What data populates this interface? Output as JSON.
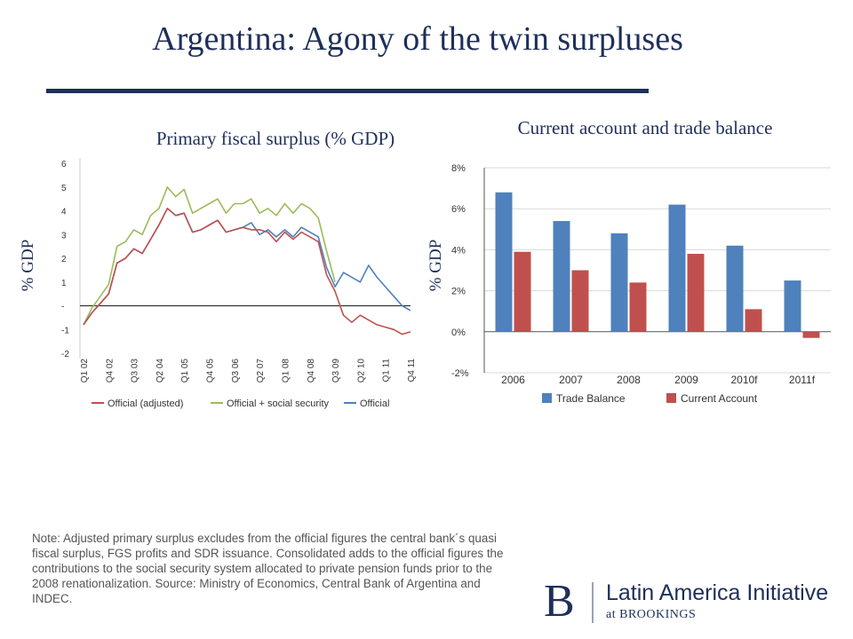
{
  "slide": {
    "title": "Argentina: Agony of the twin surpluses",
    "note": "Note: Adjusted primary surplus excludes from the official figures the central bank´s quasi fiscal surplus, FGS profits and SDR issuance. Consolidated adds to the official figures the contributions to the social security system allocated to private pension funds prior to the 2008 renationalization. Source: Ministry of Economics, Central Bank of Argentina and INDEC.",
    "logo": {
      "mark": "B",
      "name": "Latin America Initiative",
      "sub": "at BROOKINGS"
    }
  },
  "colors": {
    "title": "#1f2f5a",
    "green": "#9bbb59",
    "blue": "#4f81bd",
    "red": "#c0504d"
  },
  "chart_data": [
    {
      "type": "line",
      "title": "Primary fiscal surplus (% GDP)",
      "ylabel": "% GDP",
      "ylim": [
        -2,
        6
      ],
      "y_ticks": [
        "6",
        "5",
        "4",
        "3",
        "2",
        "1",
        "-",
        "-1",
        "-2"
      ],
      "x_tick_labels": [
        "Q1 02",
        "Q4 02",
        "Q3 03",
        "Q2 04",
        "Q1 05",
        "Q4 05",
        "Q3 06",
        "Q2 07",
        "Q1 08",
        "Q4 08",
        "Q3 09",
        "Q2 10",
        "Q1 11",
        "Q4 11"
      ],
      "x_tick_index": [
        0,
        3,
        6,
        9,
        12,
        15,
        18,
        21,
        24,
        27,
        30,
        33,
        36,
        39
      ],
      "legend": "bottom",
      "series": [
        {
          "name": "Official (adjusted)",
          "color": "#c0504d",
          "values": [
            -0.8,
            -0.3,
            0.1,
            0.5,
            1.8,
            2.0,
            2.4,
            2.2,
            2.8,
            3.4,
            4.1,
            3.8,
            3.9,
            3.1,
            3.2,
            3.4,
            3.6,
            3.1,
            3.2,
            3.3,
            3.2,
            3.2,
            3.1,
            2.7,
            3.1,
            2.8,
            3.1,
            2.9,
            2.7,
            1.3,
            0.6,
            -0.4,
            -0.7,
            -0.4,
            -0.6,
            -0.8,
            -0.9,
            -1.0,
            -1.2,
            -1.1
          ]
        },
        {
          "name": "Official + social security",
          "color": "#9bbb59",
          "values": [
            -0.8,
            -0.1,
            0.4,
            0.9,
            2.5,
            2.7,
            3.2,
            3.0,
            3.8,
            4.1,
            5.0,
            4.6,
            4.9,
            3.9,
            4.1,
            4.3,
            4.5,
            3.9,
            4.3,
            4.3,
            4.5,
            3.9,
            4.1,
            3.8,
            4.3,
            3.9,
            4.3,
            4.1,
            3.7,
            2.3,
            1.0,
            null,
            null,
            null,
            null,
            null,
            null,
            null,
            null,
            null
          ]
        },
        {
          "name": "Official",
          "color": "#4f81bd",
          "values": [
            -0.8,
            -0.3,
            0.1,
            0.5,
            1.8,
            2.0,
            2.4,
            2.2,
            2.8,
            3.4,
            4.1,
            3.8,
            3.9,
            3.1,
            3.2,
            3.4,
            3.6,
            3.1,
            3.2,
            3.3,
            3.5,
            3.0,
            3.2,
            2.9,
            3.2,
            2.9,
            3.3,
            3.1,
            2.9,
            1.6,
            0.8,
            1.4,
            1.2,
            1.0,
            1.7,
            1.2,
            0.8,
            0.4,
            0.0,
            -0.2
          ]
        }
      ]
    },
    {
      "type": "bar",
      "title": "Current account and trade balance",
      "ylabel": "% GDP",
      "ylim": [
        -2,
        8
      ],
      "y_ticks": [
        "8%",
        "6%",
        "4%",
        "2%",
        "0%",
        "-2%"
      ],
      "categories": [
        "2006",
        "2007",
        "2008",
        "2009",
        "2010f",
        "2011f"
      ],
      "legend": "bottom",
      "series": [
        {
          "name": "Trade Balance",
          "color": "#4f81bd",
          "values": [
            6.8,
            5.4,
            4.8,
            6.2,
            4.2,
            2.5
          ]
        },
        {
          "name": "Current Account",
          "color": "#c0504d",
          "values": [
            3.9,
            3.0,
            2.4,
            3.8,
            1.1,
            -0.3
          ]
        }
      ]
    }
  ]
}
